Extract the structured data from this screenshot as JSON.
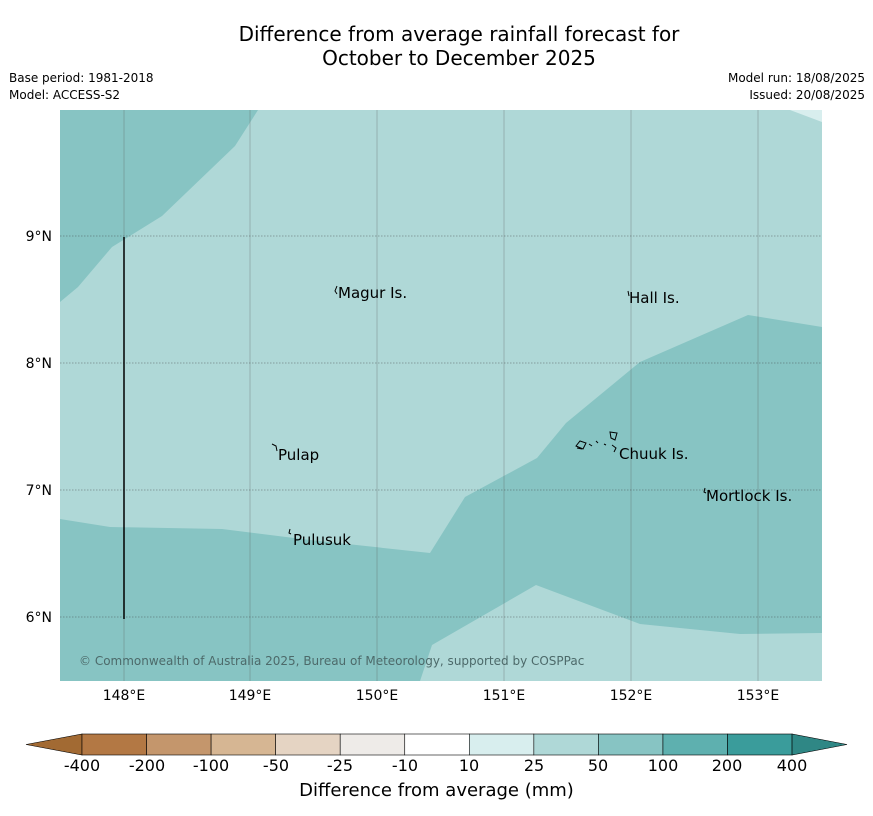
{
  "header": {
    "title_line1": "Difference from average rainfall forecast for",
    "title_line2": "October to December 2025",
    "base_period": "Base period: 1981-2018",
    "model": "Model: ACCESS-S2",
    "model_run": "Model run: 18/08/2025",
    "issued": "Issued: 20/08/2025"
  },
  "map": {
    "lat_labels": [
      "9°N",
      "8°N",
      "7°N",
      "6°N"
    ],
    "lon_labels": [
      "148°E",
      "149°E",
      "150°E",
      "151°E",
      "152°E",
      "153°E"
    ],
    "places": [
      "Magur Is.",
      "Hall Is.",
      "Pulap",
      "Chuuk Is.",
      "Mortlock Is.",
      "Pulusuk"
    ],
    "copyright": "© Commonwealth of Australia 2025, Bureau of Meteorology, supported by COSPPac"
  },
  "colorbar": {
    "ticks": [
      "-400",
      "-200",
      "-100",
      "-50",
      "-25",
      "-10",
      "10",
      "25",
      "50",
      "100",
      "200",
      "400"
    ],
    "colors": [
      "#a26a33",
      "#b37844",
      "#c4966c",
      "#d6b693",
      "#e5d4c3",
      "#eeebe8",
      "#ffffff",
      "#d8eeee",
      "#afd8d7",
      "#87c4c3",
      "#5eb0af",
      "#3a9c9b",
      "#2f8785"
    ],
    "title": "Difference from average (mm)"
  },
  "palette": {
    "band_25_50": "#afd8d7",
    "band_50_100": "#87c4c3",
    "band_10_25": "#d8eeee"
  }
}
